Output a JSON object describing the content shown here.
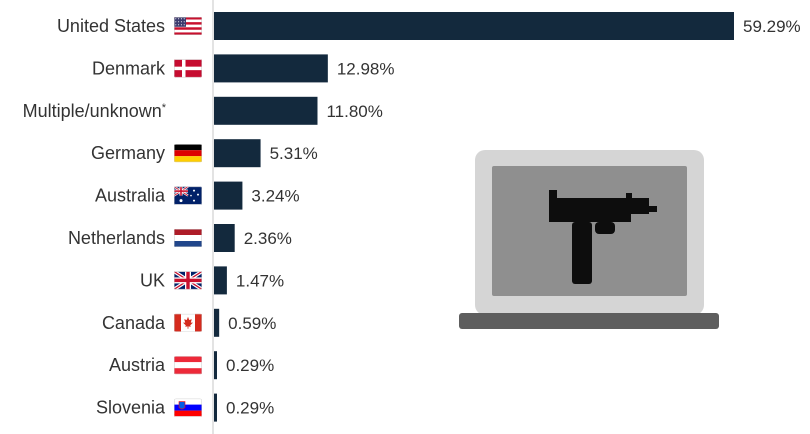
{
  "chart_data": {
    "type": "bar",
    "orientation": "horizontal",
    "categories": [
      "United States",
      "Denmark",
      "Multiple/unknown*",
      "Germany",
      "Australia",
      "Netherlands",
      "UK",
      "Canada",
      "Austria",
      "Slovenia"
    ],
    "values": [
      59.29,
      12.98,
      11.8,
      5.31,
      3.24,
      2.36,
      1.47,
      0.59,
      0.29,
      0.29
    ],
    "value_labels": [
      "59.29%",
      "12.98%",
      "11.80%",
      "5.31%",
      "3.24%",
      "2.36%",
      "1.47%",
      "0.59%",
      "0.29%",
      "0.29%"
    ],
    "flags": [
      "us-flag-icon",
      "denmark-flag-icon",
      "",
      "germany-flag-icon",
      "australia-flag-icon",
      "netherlands-flag-icon",
      "uk-flag-icon",
      "canada-flag-icon",
      "austria-flag-icon",
      "slovenia-flag-icon"
    ],
    "title": "",
    "xlabel": "",
    "ylabel": "",
    "xlim": [
      0,
      60
    ],
    "grid": false,
    "legend": "none",
    "colors": {
      "bar": "#13293d",
      "text": "#333333",
      "axis": "#c7c7c7",
      "laptop_frame": "#d5d5d5",
      "laptop_screen": "#8f8f8f",
      "laptop_base": "#5e5e5e",
      "gun": "#0d0d0d"
    },
    "illustration": {
      "icons": [
        "laptop-icon",
        "submachine-gun-icon"
      ]
    }
  }
}
